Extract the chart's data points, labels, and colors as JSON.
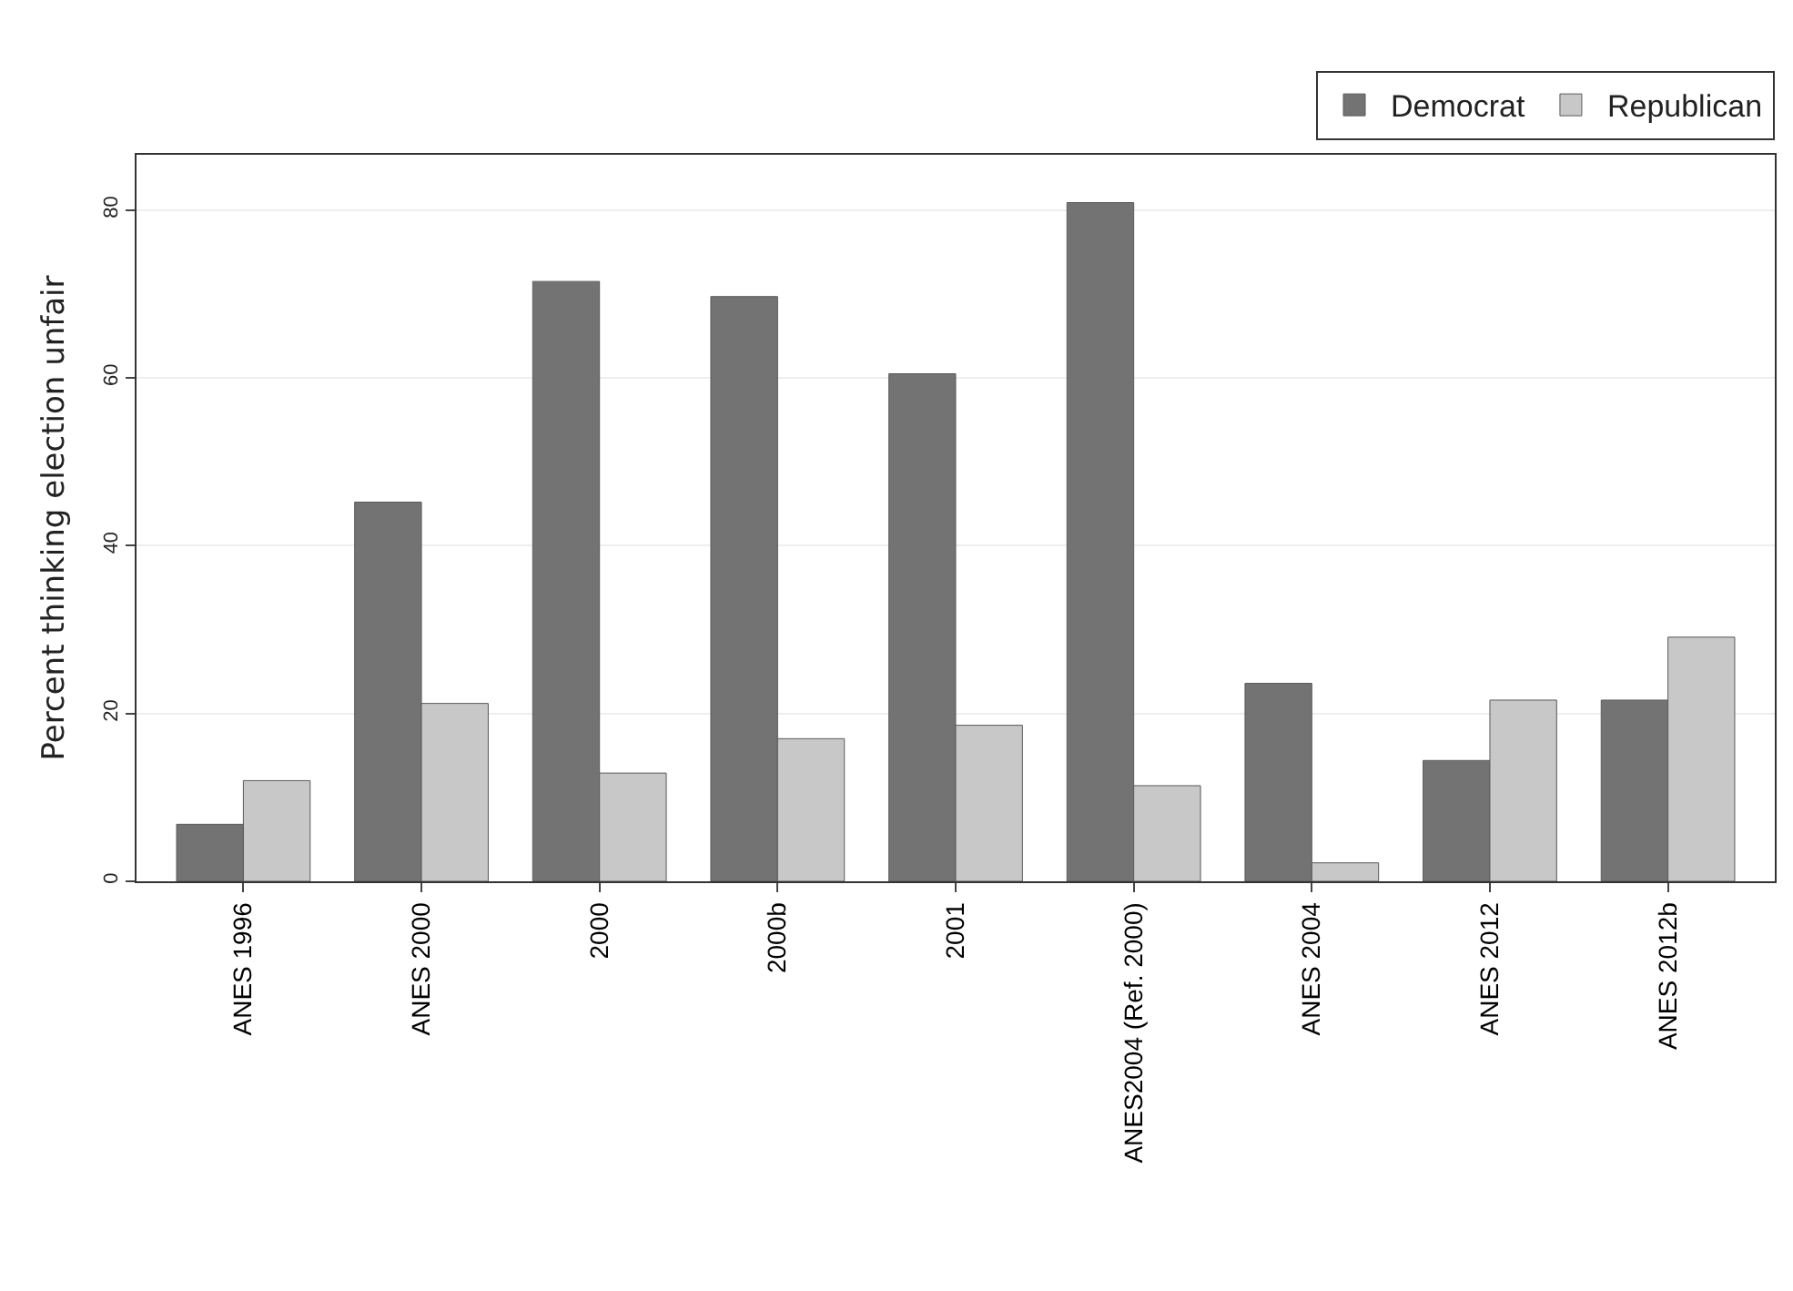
{
  "chart_data": {
    "type": "bar",
    "ylabel": "Percent thinking election unfair",
    "categories": [
      "ANES 1996",
      "ANES 2000",
      "2000",
      "2000b",
      "2001",
      "ANES2004 (Ref. 2000)",
      "ANES 2004",
      "ANES 2012",
      "ANES 2012b"
    ],
    "series": [
      {
        "name": "Democrat",
        "color": "#737373",
        "values": [
          6.8,
          45.2,
          71.5,
          69.7,
          60.5,
          80.9,
          23.6,
          14.4,
          21.6
        ]
      },
      {
        "name": "Republican",
        "color": "#c8c8c8",
        "values": [
          12,
          21.2,
          12.9,
          17,
          18.6,
          11.4,
          2.2,
          21.6,
          29.1
        ]
      }
    ],
    "ylim": [
      0,
      86.6
    ],
    "yticks": [
      0,
      20,
      40,
      60,
      80
    ],
    "grid": "y",
    "legend": "top right"
  }
}
